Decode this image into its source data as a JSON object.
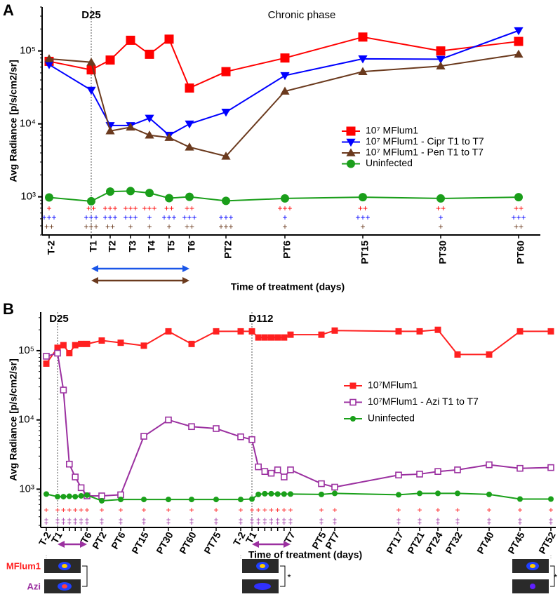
{
  "chart_data": [
    {
      "type": "line",
      "panel": "A",
      "log_y": true,
      "y_label": "Avg Radiance [p/s/cm2/sr]",
      "x_label": "Time of treatment (days)",
      "annotations": [
        "D25",
        "Chronic phase"
      ],
      "categories": [
        "T-2",
        "T1",
        "T2",
        "T3",
        "T4",
        "T5",
        "T6",
        "PT2",
        "PT6",
        "PT15",
        "PT30",
        "PT60"
      ],
      "ylim": [
        300,
        400000
      ],
      "yticks": [
        {
          "value": 1000,
          "label": "10³"
        },
        {
          "value": 10000,
          "label": "10⁴"
        },
        {
          "value": 100000,
          "label": "10⁵"
        }
      ],
      "legend": "right",
      "series": [
        {
          "name": "10⁷ MFlum1",
          "color": "#ff0000",
          "marker": "square",
          "values": [
            72000,
            55000,
            75000,
            140000,
            90000,
            145000,
            31000,
            52000,
            80000,
            155000,
            100000,
            135000
          ],
          "significance": [
            "+",
            "++",
            "+++",
            "+++",
            "+++",
            "++",
            "++",
            null,
            "+++",
            "++",
            "++",
            "++"
          ]
        },
        {
          "name": "10⁷ MFlum1 - Cipr T1 to T7",
          "color": "#0000ff",
          "marker": "triangle-down",
          "values": [
            65000,
            29000,
            9500,
            9500,
            12000,
            7000,
            10000,
            14500,
            46000,
            78000,
            77000,
            190000
          ],
          "significance": [
            "+++",
            "+++",
            "+++",
            "+++",
            "+",
            "+++",
            "+++",
            "+++",
            "+",
            "+++",
            "+",
            "+++"
          ]
        },
        {
          "name": "10⁷ MFlum1 - Pen T1 to T7",
          "color": "#6b3a1e",
          "marker": "triangle-up",
          "values": [
            78000,
            70000,
            8000,
            9000,
            7000,
            6500,
            4800,
            3600,
            28000,
            52000,
            62000,
            90000
          ],
          "significance": [
            "++",
            "+++",
            "++",
            "+",
            "+",
            "+",
            "++",
            "+++",
            "+",
            "+",
            "+",
            "++"
          ]
        },
        {
          "name": "Uninfected",
          "color": "#1a9e1a",
          "marker": "circle",
          "values": [
            980,
            870,
            1180,
            1200,
            1130,
            960,
            1000,
            880,
            950,
            990,
            950,
            990
          ]
        }
      ]
    },
    {
      "type": "line",
      "panel": "B",
      "log_y": true,
      "y_label": "Avg Radiance [p/s/cm2/sr]",
      "x_label": "Time of treatment (days)",
      "annotations": [
        "D25",
        "D112"
      ],
      "image_labels": [
        "MFlum1",
        "Azi"
      ],
      "image_note": "*",
      "categories": [
        "T-2",
        "T1",
        null,
        null,
        null,
        null,
        "T6",
        "PT2",
        "PT6",
        "PT15",
        "PT30",
        "PT60",
        "PT75",
        "T-2",
        "T1",
        null,
        null,
        null,
        null,
        null,
        "T7",
        "PT5",
        "PT7",
        "PT17",
        "PT21",
        "PT24",
        "PT32",
        "PT40",
        "PT45",
        "PT52"
      ],
      "ylim": [
        280,
        360000
      ],
      "yticks": [
        {
          "value": 1000,
          "label": "10³"
        },
        {
          "value": 10000,
          "label": "10⁴"
        },
        {
          "value": 100000,
          "label": "10⁵"
        }
      ],
      "legend": "right",
      "series": [
        {
          "name": "10⁷MFlum1",
          "color": "#ff2020",
          "marker": "square",
          "values": [
            65000,
            110000,
            120000,
            92000,
            120000,
            125000,
            125000,
            140000,
            130000,
            118000,
            190000,
            125000,
            190000,
            190000,
            190000,
            155000,
            155000,
            155000,
            155000,
            155000,
            170000,
            170000,
            195000,
            190000,
            190000,
            200000,
            88000,
            88000,
            190000,
            190000
          ],
          "significance": [
            "+",
            "+",
            "+",
            "+",
            "+",
            "+",
            "+",
            "+",
            "+",
            "+",
            "+",
            "+",
            "+",
            "+",
            "+",
            "+",
            "+",
            "+",
            "+",
            "+",
            "+",
            "+",
            "+",
            "+",
            "+",
            "+",
            "+",
            "+",
            "+",
            "+"
          ]
        },
        {
          "name": "10⁷MFlum1 - Azi T1 to T7",
          "color": "#9b30a0",
          "marker": "open-square",
          "values": [
            83000,
            92000,
            27000,
            2300,
            1500,
            1050,
            800,
            800,
            830,
            5800,
            10000,
            8000,
            7500,
            5700,
            5200,
            2100,
            1800,
            1700,
            1900,
            1500,
            1900,
            1200,
            1070,
            1600,
            1650,
            1800,
            1900,
            2250,
            2000,
            2050
          ],
          "significance": [
            "‡",
            "‡",
            "‡",
            "‡",
            "‡",
            "‡",
            "‡",
            "‡",
            "‡",
            "‡",
            "‡",
            "‡",
            "‡",
            "‡",
            "‡",
            "‡",
            "‡",
            "‡",
            "‡",
            "‡",
            "‡",
            "‡",
            "‡",
            "‡",
            "‡",
            "‡",
            "‡",
            "‡",
            "‡",
            "‡"
          ]
        },
        {
          "name": "Uninfected",
          "color": "#1aa01a",
          "marker": "circle",
          "values": [
            850,
            780,
            780,
            790,
            780,
            800,
            820,
            680,
            710,
            710,
            710,
            710,
            710,
            710,
            720,
            840,
            860,
            860,
            850,
            850,
            850,
            840,
            870,
            830,
            870,
            870,
            870,
            840,
            720,
            720
          ]
        }
      ]
    }
  ]
}
